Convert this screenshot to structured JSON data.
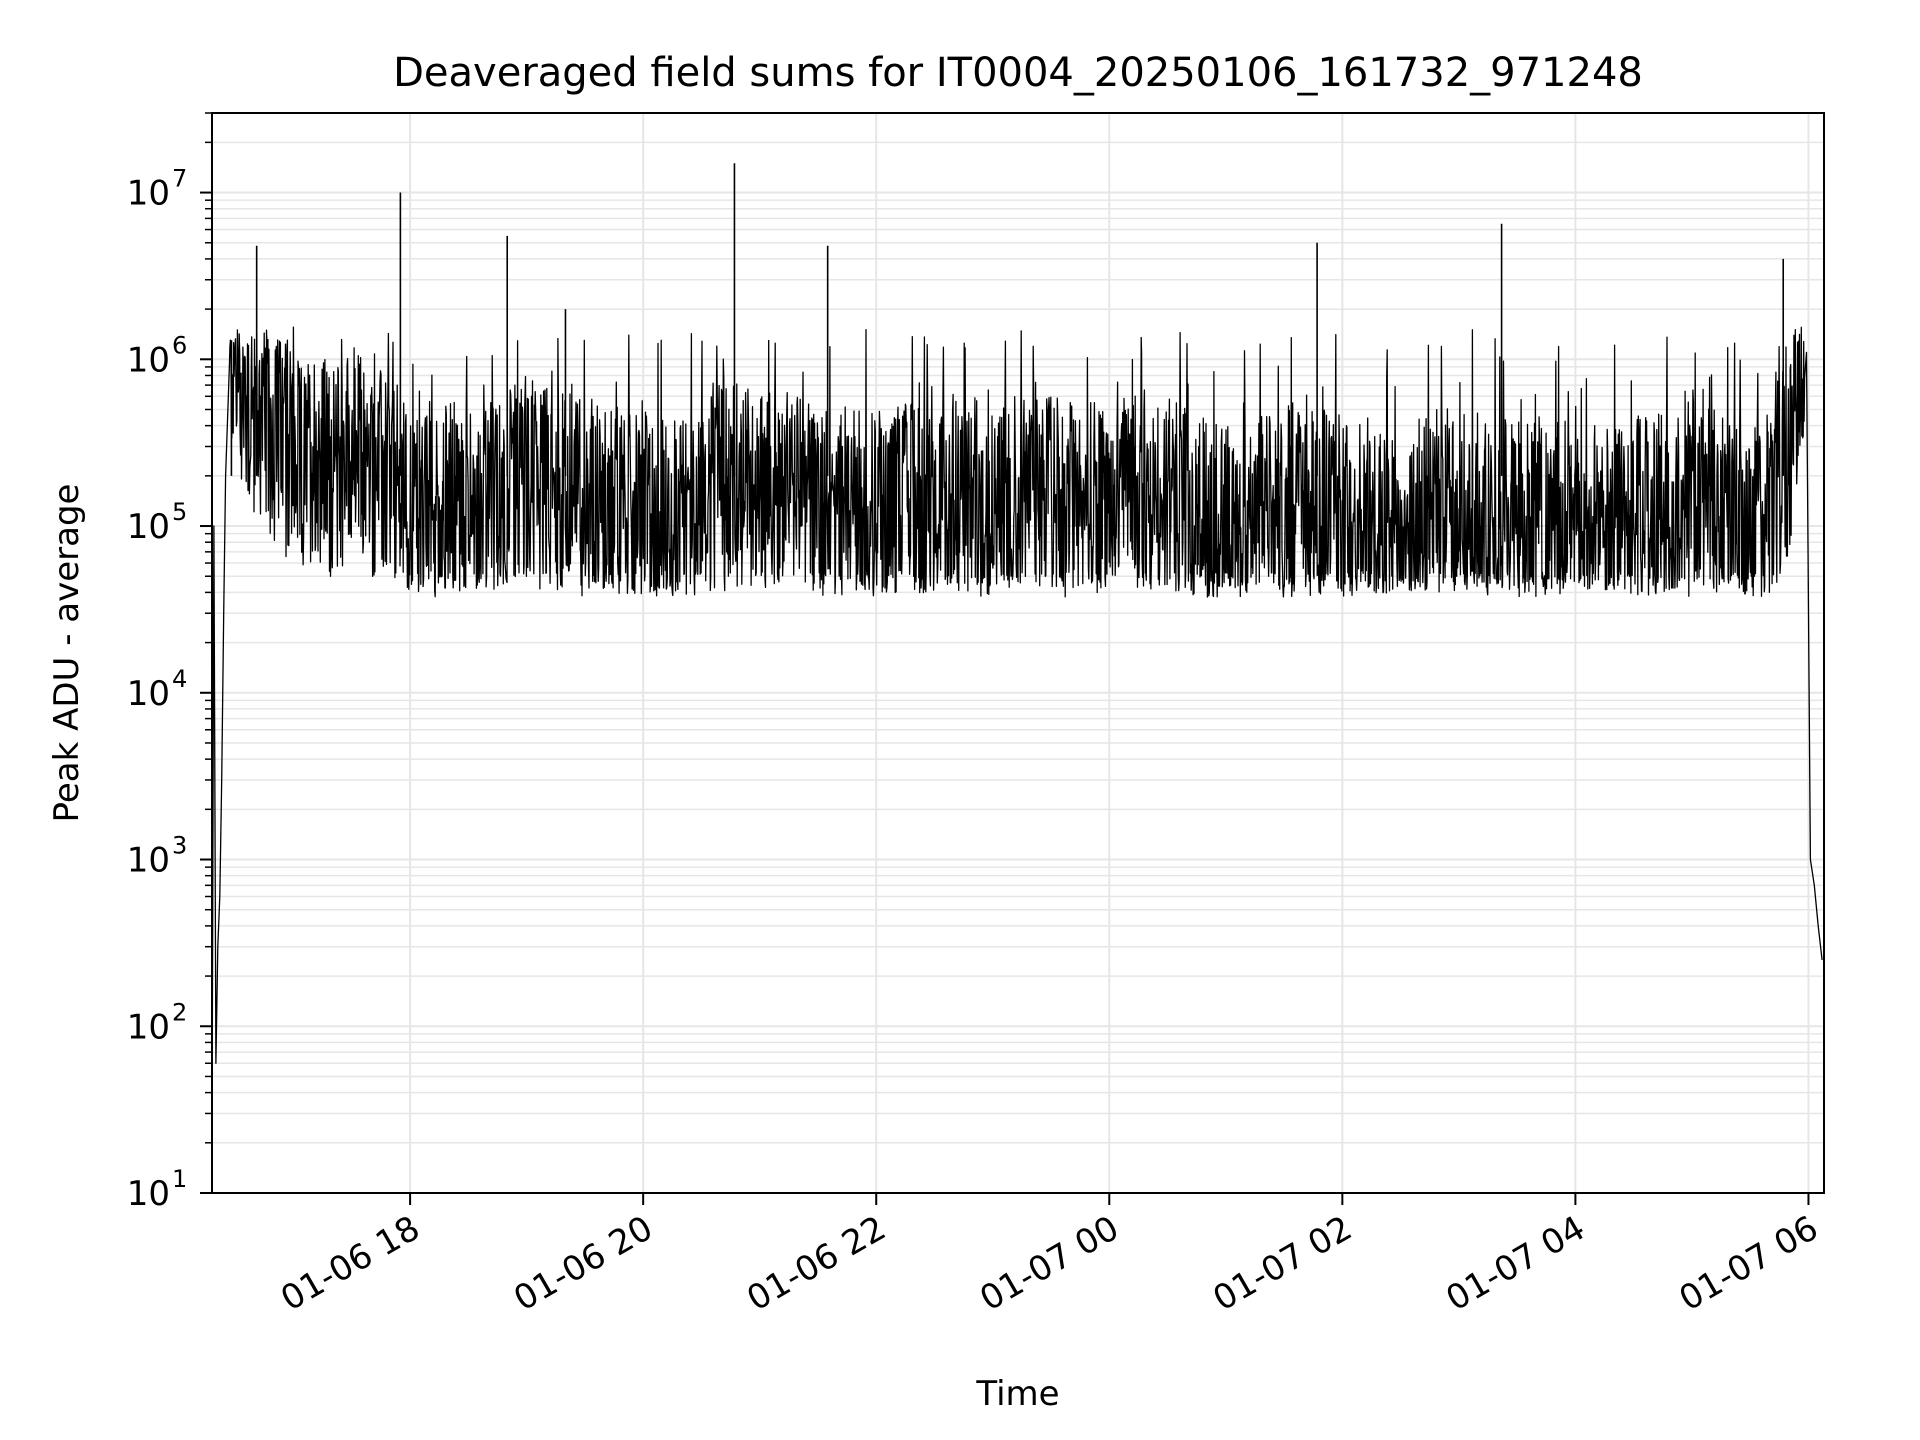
{
  "chart_data": {
    "type": "line",
    "title": "Deaveraged field sums for IT0004_20250106_161732_971248",
    "xlabel": "Time",
    "ylabel": "Peak ADU - average",
    "x_range": [
      "2025-01-06 16:18",
      "2025-01-07 06:08"
    ],
    "ylim": [
      10,
      30000000
    ],
    "yscale": "log",
    "grid": true,
    "grid_minor": true,
    "line_color": "#000000",
    "grid_color": "#e6e6e6",
    "x_ticks": [
      {
        "t": "2025-01-06 18:00",
        "label": "01-06 18"
      },
      {
        "t": "2025-01-06 20:00",
        "label": "01-06 20"
      },
      {
        "t": "2025-01-06 22:00",
        "label": "01-06 22"
      },
      {
        "t": "2025-01-07 00:00",
        "label": "01-07 00"
      },
      {
        "t": "2025-01-07 02:00",
        "label": "01-07 02"
      },
      {
        "t": "2025-01-07 04:00",
        "label": "01-07 04"
      },
      {
        "t": "2025-01-07 06:00",
        "label": "01-07 06"
      }
    ],
    "y_ticks": [
      {
        "value": 10,
        "base": "10",
        "exp": "1"
      },
      {
        "value": 100,
        "base": "10",
        "exp": "2"
      },
      {
        "value": 1000,
        "base": "10",
        "exp": "3"
      },
      {
        "value": 10000,
        "base": "10",
        "exp": "4"
      },
      {
        "value": 100000,
        "base": "10",
        "exp": "5"
      },
      {
        "value": 1000000,
        "base": "10",
        "exp": "6"
      },
      {
        "value": 10000000,
        "base": "10",
        "exp": "7"
      }
    ],
    "series": [
      {
        "x": [
          "2025-01-06 16:18",
          "2025-01-06 16:19",
          "2025-01-06 16:20",
          "2025-01-06 16:21",
          "2025-01-06 16:22",
          "2025-01-06 16:23",
          "2025-01-06 16:24",
          "2025-01-06 16:25",
          "2025-01-06 16:27",
          "2025-01-06 16:28",
          "2025-01-06 16:30",
          "2025-01-06 16:32",
          "2025-01-06 16:35",
          "2025-01-06 16:38",
          "2025-01-06 16:42",
          "2025-01-06 16:46",
          "2025-01-06 16:50",
          "2025-01-06 16:55",
          "2025-01-06 17:00",
          "2025-01-06 17:05",
          "2025-01-06 17:10",
          "2025-01-06 17:15",
          "2025-01-06 17:20",
          "2025-01-06 17:25",
          "2025-01-06 17:30",
          "2025-01-06 17:35",
          "2025-01-06 17:40",
          "2025-01-06 17:45",
          "2025-01-06 17:50",
          "2025-01-06 17:55",
          "2025-01-06 18:00",
          "2025-01-06 18:10",
          "2025-01-06 18:20",
          "2025-01-06 18:30",
          "2025-01-06 18:45",
          "2025-01-06 19:00",
          "2025-01-06 19:15",
          "2025-01-06 19:30",
          "2025-01-06 19:45",
          "2025-01-06 20:00",
          "2025-01-06 20:15",
          "2025-01-06 20:30",
          "2025-01-06 20:45",
          "2025-01-06 21:00",
          "2025-01-06 21:15",
          "2025-01-06 21:30",
          "2025-01-06 21:45",
          "2025-01-06 22:00",
          "2025-01-06 22:15",
          "2025-01-06 22:30",
          "2025-01-06 22:45",
          "2025-01-06 23:00",
          "2025-01-06 23:15",
          "2025-01-06 23:30",
          "2025-01-06 23:45",
          "2025-01-07 00:00",
          "2025-01-07 00:15",
          "2025-01-07 00:30",
          "2025-01-07 00:45",
          "2025-01-07 01:00",
          "2025-01-07 01:15",
          "2025-01-07 01:30",
          "2025-01-07 01:45",
          "2025-01-07 02:00",
          "2025-01-07 02:15",
          "2025-01-07 02:30",
          "2025-01-07 02:45",
          "2025-01-07 03:00",
          "2025-01-07 03:15",
          "2025-01-07 03:30",
          "2025-01-07 03:45",
          "2025-01-07 04:00",
          "2025-01-07 04:15",
          "2025-01-07 04:30",
          "2025-01-07 04:45",
          "2025-01-07 05:00",
          "2025-01-07 05:10",
          "2025-01-07 05:20",
          "2025-01-07 05:30",
          "2025-01-07 05:40",
          "2025-01-07 05:50",
          "2025-01-07 05:55",
          "2025-01-07 05:59",
          "2025-01-07 06:01",
          "2025-01-07 06:03",
          "2025-01-07 06:05",
          "2025-01-07 06:07"
        ],
        "y": [
          20,
          100000,
          60,
          300,
          600,
          3000,
          30000,
          200000,
          600000,
          1100000,
          900000,
          700000,
          600000,
          500000,
          450000,
          400000,
          350000,
          300000,
          250000,
          200000,
          300000,
          250000,
          200000,
          250000,
          300000,
          250000,
          200000,
          200000,
          180000,
          150000,
          120000,
          110000,
          130000,
          120000,
          130000,
          200000,
          150000,
          150000,
          120000,
          110000,
          100000,
          150000,
          180000,
          160000,
          150000,
          140000,
          120000,
          110000,
          130000,
          150000,
          140000,
          130000,
          150000,
          140000,
          120000,
          130000,
          150000,
          140000,
          100000,
          90000,
          100000,
          110000,
          120000,
          110000,
          100000,
          100000,
          110000,
          120000,
          100000,
          110000,
          100000,
          100000,
          90000,
          100000,
          110000,
          100000,
          120000,
          90000,
          80000,
          150000,
          300000,
          600000,
          1100000,
          1000,
          700,
          400,
          250
        ]
      }
    ],
    "spikes": [
      {
        "t": "2025-01-06 16:28",
        "value": 1300000
      },
      {
        "t": "2025-01-06 16:41",
        "value": 4800000
      },
      {
        "t": "2025-01-06 17:55",
        "value": 10000000
      },
      {
        "t": "2025-01-06 18:50",
        "value": 5500000
      },
      {
        "t": "2025-01-06 19:20",
        "value": 2000000
      },
      {
        "t": "2025-01-06 20:47",
        "value": 15000000
      },
      {
        "t": "2025-01-06 21:35",
        "value": 4800000
      },
      {
        "t": "2025-01-07 01:47",
        "value": 5000000
      },
      {
        "t": "2025-01-07 03:22",
        "value": 6500000
      },
      {
        "t": "2025-01-07 05:47",
        "value": 4000000
      }
    ],
    "noise_band": {
      "low": 50000,
      "high": 1300000
    }
  }
}
